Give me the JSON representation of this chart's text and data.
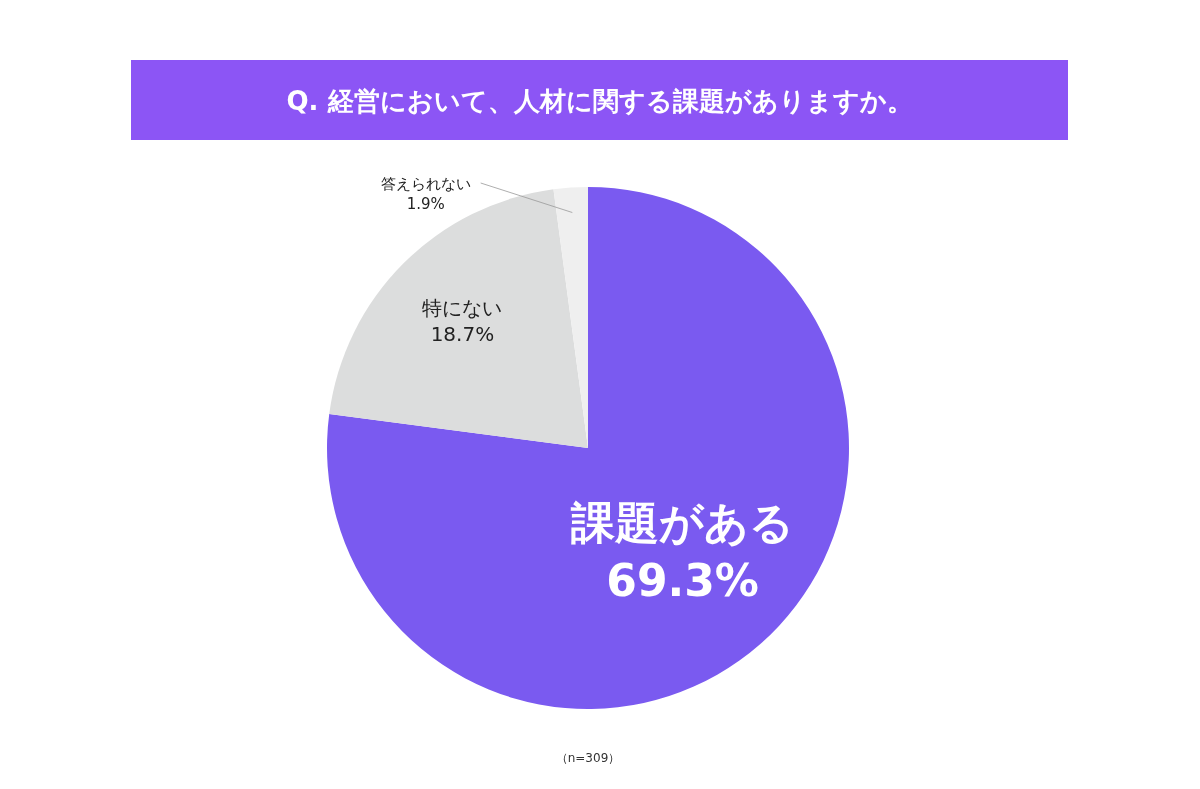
{
  "chart_data": {
    "type": "pie",
    "title": "Q. 経営において、人材に関する課題がありますか。",
    "categories": [
      "課題がある",
      "特にない",
      "答えられない"
    ],
    "values": [
      69.3,
      18.7,
      1.9
    ],
    "value_labels": [
      "69.3%",
      "18.7%",
      "1.9%"
    ],
    "colors": [
      "#7a5af0",
      "#dcdddd",
      "#efefef"
    ],
    "annotations": [
      "（n=309）"
    ]
  }
}
